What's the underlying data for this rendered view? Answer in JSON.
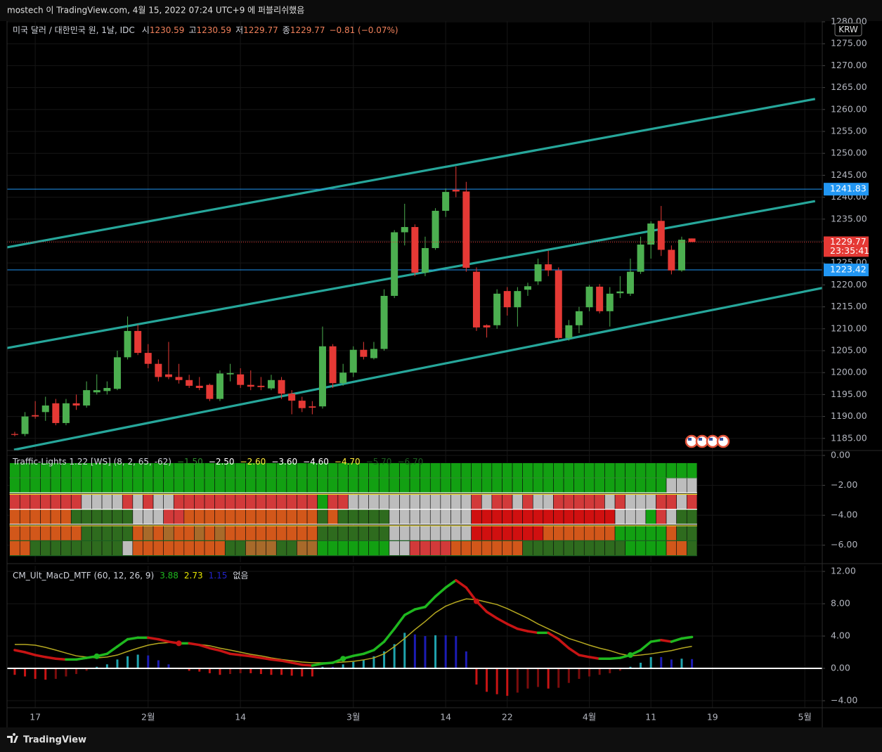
{
  "header": "mostech 이 TradingView.com, 4월 15, 2022 07:24 UTC+9 에 퍼블리쉬했음",
  "footer": "TradingView",
  "chart_data": [
    {
      "type": "candlestick",
      "title": "미국 달러 / 대한민국 원, 1날, IDC",
      "ohlc_labels": [
        "시",
        "고",
        "저",
        "종"
      ],
      "change": "−0.81 (−0.07%)",
      "currency": "KRW",
      "countdown": "23:35:41",
      "up_color": "#4caf50",
      "down_color": "#e53935",
      "open": [
        1186,
        1186,
        1190.3,
        1191,
        1193,
        1188.5,
        1193,
        1192.5,
        1195.5,
        1195.8,
        1196.3,
        1203.5,
        1209.5,
        1204.5,
        1202,
        1199.6,
        1199,
        1198.3,
        1197,
        1197.2,
        1194,
        1199.6,
        1199.6,
        1197.2,
        1197,
        1196.4,
        1198.3,
        1195.2,
        1193.6,
        1192.3,
        1192.3,
        1206,
        1197.6,
        1200,
        1205.2,
        1203.3,
        1205.4,
        1217.5,
        1232,
        1233.2,
        1222.8,
        1228.4,
        1236.9,
        1241.7,
        1241.3,
        1223,
        1210.8,
        1210.8,
        1218.6,
        1214.9,
        1218.9,
        1220.8,
        1224.7,
        1223.3,
        1207.9,
        1210.8,
        1214.9,
        1219.6,
        1214,
        1218.1,
        1218,
        1223,
        1229.2,
        1234.6,
        1228,
        1223.3,
        1230.59
      ],
      "high": [
        1186.5,
        1191,
        1193.5,
        1194.5,
        1194,
        1194,
        1195,
        1198,
        1199.6,
        1198,
        1205,
        1212.8,
        1211,
        1206.5,
        1203,
        1207,
        1202,
        1199.5,
        1199,
        1197.5,
        1200.5,
        1202,
        1201,
        1200.5,
        1199,
        1199.5,
        1199,
        1196,
        1194.5,
        1193.5,
        1210.5,
        1206.5,
        1202,
        1206,
        1207,
        1207,
        1219,
        1232.5,
        1238.5,
        1233.8,
        1231,
        1237.5,
        1242,
        1247,
        1243.5,
        1224,
        1211,
        1219,
        1219.5,
        1219.5,
        1220.5,
        1226,
        1227.8,
        1224,
        1212,
        1215,
        1220,
        1220.2,
        1219.5,
        1222,
        1226,
        1231,
        1234.5,
        1238,
        1229,
        1231,
        1230.59
      ],
      "low": [
        1185.5,
        1185.5,
        1189.5,
        1189,
        1188,
        1188,
        1191.5,
        1192,
        1195,
        1195,
        1196,
        1203,
        1204,
        1201,
        1198,
        1198.5,
        1197.5,
        1196.5,
        1196,
        1193.5,
        1193.5,
        1198,
        1196.5,
        1196,
        1196,
        1196,
        1194,
        1190.5,
        1191,
        1190.5,
        1191.8,
        1196.5,
        1197,
        1199,
        1203,
        1203,
        1205,
        1217,
        1229,
        1222,
        1222,
        1228,
        1235.5,
        1240,
        1223,
        1209.5,
        1208,
        1210,
        1213,
        1210.5,
        1217.5,
        1220,
        1222,
        1207.5,
        1207.3,
        1209,
        1214,
        1213.5,
        1210.5,
        1217,
        1217.5,
        1222.5,
        1226,
        1226.6,
        1222.4,
        1223,
        1229.77
      ],
      "close": [
        1185.8,
        1190,
        1190,
        1192.5,
        1188.5,
        1193,
        1192.5,
        1196,
        1196,
        1196.5,
        1203.5,
        1209.5,
        1204.5,
        1202,
        1199,
        1199,
        1198.3,
        1197,
        1196.5,
        1194,
        1199.8,
        1199.9,
        1197.2,
        1196.8,
        1196.7,
        1198.3,
        1195.2,
        1193.6,
        1191.9,
        1192,
        1206,
        1197.6,
        1200,
        1205.2,
        1203.6,
        1205.4,
        1217.5,
        1232,
        1233.2,
        1222.8,
        1228.4,
        1236.9,
        1241.2,
        1241.3,
        1223.9,
        1210.3,
        1210.3,
        1218,
        1214.9,
        1218.6,
        1219.7,
        1224.7,
        1223.3,
        1207.9,
        1210.8,
        1214,
        1219.6,
        1214,
        1218,
        1218.5,
        1223,
        1229.2,
        1234,
        1228,
        1223.3,
        1230.3,
        1229.77
      ],
      "trendline_color": "#26a69a",
      "trendlines": [
        {
          "x": [
            -0.75,
            78.0
          ],
          "y": [
            1228.56,
            1262.4
          ]
        },
        {
          "x": [
            -0.75,
            78.0
          ],
          "y": [
            1205.6,
            1239.1
          ]
        },
        {
          "x": [
            -0.07,
            78.7
          ],
          "y": [
            1182.4,
            1219.3
          ]
        }
      ],
      "hlines": [
        {
          "value": 1241.83,
          "color": "#2196f3"
        },
        {
          "value": 1223.42,
          "color": "#2196f3"
        }
      ],
      "xlim": [
        -0.75,
        78.7
      ],
      "xticks": [
        {
          "value": 2,
          "label": "17"
        },
        {
          "value": 13,
          "label": "2월"
        },
        {
          "value": 22,
          "label": "14"
        },
        {
          "value": 33,
          "label": "3월"
        },
        {
          "value": 42,
          "label": "14"
        },
        {
          "value": 48,
          "label": "22"
        },
        {
          "value": 56,
          "label": "4월"
        },
        {
          "value": 62,
          "label": "11"
        },
        {
          "value": 68,
          "label": "19"
        },
        {
          "value": 77,
          "label": "5월"
        }
      ],
      "ylim": [
        1182.4,
        1280.16
      ],
      "yticks": [
        {
          "value": 1280,
          "label": "1280.00"
        },
        {
          "value": 1275,
          "label": "1275.00"
        },
        {
          "value": 1270,
          "label": "1270.00"
        },
        {
          "value": 1265,
          "label": "1265.00"
        },
        {
          "value": 1260,
          "label": "1260.00"
        },
        {
          "value": 1255,
          "label": "1255.00"
        },
        {
          "value": 1250,
          "label": "1250.00"
        },
        {
          "value": 1245,
          "label": "1245.00"
        },
        {
          "value": 1240,
          "label": "1240.00"
        },
        {
          "value": 1235,
          "label": "1235.00"
        },
        {
          "value": 1230,
          "label": "1230.00"
        },
        {
          "value": 1225,
          "label": "1225.00"
        },
        {
          "value": 1220,
          "label": "1220.00"
        },
        {
          "value": 1215,
          "label": "1215.00"
        },
        {
          "value": 1210,
          "label": "1210.00"
        },
        {
          "value": 1205,
          "label": "1205.00"
        },
        {
          "value": 1200,
          "label": "1200.00"
        },
        {
          "value": 1195,
          "label": "1195.00"
        },
        {
          "value": 1190,
          "label": "1190.00"
        },
        {
          "value": 1185,
          "label": "1185.00"
        }
      ],
      "grid": true
    },
    {
      "type": "heatmap",
      "title": "Traffic-Lights 1.22 [WS] (8, 2, 65, -62)",
      "levels": [
        {
          "value": -1.5,
          "label": "−1.50",
          "color": "#2e8b2e"
        },
        {
          "value": -2.5,
          "label": "−2.50",
          "color": "#ffffff"
        },
        {
          "value": -2.6,
          "label": "−2.60",
          "color": "#ffeb3b"
        },
        {
          "value": -3.6,
          "label": "−3.60",
          "color": "#ffffff"
        },
        {
          "value": -4.6,
          "label": "−4.60",
          "color": "#ffffff"
        },
        {
          "value": -4.7,
          "label": "−4.70",
          "color": "#ffeb3b"
        },
        {
          "value": -5.7,
          "label": "−5.70",
          "color": "#1b5e20"
        },
        {
          "value": -6.7,
          "label": "−6.70",
          "color": "#1b5e20"
        }
      ],
      "palette": {
        "G": "#12a012",
        "g": "#2e6b1e",
        "R": "#d23a3a",
        "W": "#bdbdbd",
        "O": "#d2571a",
        "o": "#a86a2a",
        "D": "#d01010"
      },
      "rows": [
        {
          "top": -0.5,
          "bottom": -1.5,
          "colors": "GGGGGGGGGGGGGGGGGGGGGGGGGGGGGGGGGGGGGGGGGGGGGGGGGGGGGGGGGGGGGGGGGGG"
        },
        {
          "top": -1.5,
          "bottom": -2.5,
          "colors": "GGGGGGGGGGGGGGGGGGGGGGGGGGGGGGGGGGGGGGGGGGGGGGGGGGGGGGGGGGGGGGGGWWW"
        },
        {
          "top": -2.6,
          "bottom": -3.6,
          "colors": "RRRRRRRWWWWRWRWWRRRRRRRRRRRRRRGRRWWWWWWWWWWWWRWRRWRWWRRRRRWRWWWRRWR"
        },
        {
          "top": -3.6,
          "bottom": -4.6,
          "colors": "OOOOOOggggggWWWRROOOOOOOOOOOOOgOgggggWWWWWWWWDDDDDDDDDDDDDDWWWGRWgg"
        },
        {
          "top": -4.7,
          "bottom": -5.7,
          "colors": "OOOOOOOgggggOoOoOOoOoOOOOOOOOOgggggggWWWWWWWWDDDDDDDOOOOOOOGGGGGOgg"
        },
        {
          "top": -5.7,
          "bottom": -6.7,
          "colors": "OOgggggggggWOOOOOOOOOggoooggooGGGGGGGWWRRRROOOOOOOggggggggggGGGGOOg"
        }
      ],
      "ylim": [
        -7.14,
        0.33
      ],
      "yticks": [
        {
          "value": 0,
          "label": "0.00"
        },
        {
          "value": -2,
          "label": "−2.00"
        },
        {
          "value": -4,
          "label": "−4.00"
        },
        {
          "value": -6,
          "label": "−6.00"
        }
      ]
    },
    {
      "type": "line",
      "title": "CM_Ult_MacD_MTF (60, 12, 26, 9)",
      "na_label": "없음",
      "series": [
        {
          "rising_color": "#1fb81f",
          "falling_color": "#c81414",
          "values": [
            2.26,
            2.0,
            1.65,
            1.4,
            1.2,
            1.1,
            1.1,
            1.3,
            1.5,
            1.8,
            2.7,
            3.6,
            3.8,
            3.8,
            3.6,
            3.3,
            3.1,
            3.1,
            2.9,
            2.5,
            2.2,
            1.8,
            1.65,
            1.5,
            1.3,
            1.1,
            0.95,
            0.7,
            0.45,
            0.35,
            0.6,
            0.7,
            1.2,
            1.55,
            1.8,
            2.26,
            3.3,
            4.9,
            6.6,
            7.3,
            7.6,
            8.9,
            10.0,
            10.9,
            10.0,
            8.3,
            7.0,
            6.2,
            5.5,
            4.9,
            4.6,
            4.4,
            4.4,
            3.6,
            2.5,
            1.65,
            1.4,
            1.2,
            1.2,
            1.3,
            1.65,
            2.26,
            3.3,
            3.5,
            3.3,
            3.7,
            3.88
          ]
        },
        {
          "color": "#b5a820",
          "values": [
            2.96,
            2.96,
            2.87,
            2.6,
            2.26,
            1.9,
            1.55,
            1.4,
            1.3,
            1.4,
            1.65,
            2.1,
            2.5,
            2.87,
            3.1,
            3.2,
            3.2,
            3.1,
            2.96,
            2.8,
            2.5,
            2.26,
            2.0,
            1.74,
            1.55,
            1.3,
            1.1,
            0.95,
            0.78,
            0.7,
            0.7,
            0.7,
            0.78,
            0.87,
            1.05,
            1.3,
            1.8,
            2.7,
            3.7,
            4.8,
            5.8,
            6.9,
            7.7,
            8.2,
            8.6,
            8.5,
            8.2,
            7.9,
            7.4,
            6.8,
            6.2,
            5.5,
            4.9,
            4.3,
            3.7,
            3.3,
            2.87,
            2.5,
            2.2,
            1.8,
            1.55,
            1.65,
            1.8,
            2.0,
            2.2,
            2.5,
            2.73
          ]
        }
      ],
      "histogram": {
        "colors": {
          "up_rising": "#1fa3ad",
          "up_falling": "#1c1cb4",
          "down_falling": "#c81414",
          "down_rising": "#7a0c0c"
        },
        "values": [
          -0.8,
          -1.0,
          -1.3,
          -1.4,
          -1.3,
          -1.0,
          -0.7,
          -0.3,
          0.2,
          0.5,
          1.1,
          1.5,
          1.7,
          1.6,
          1.0,
          0.5,
          -0.1,
          -0.3,
          -0.4,
          -0.6,
          -0.8,
          -0.7,
          -0.6,
          -0.6,
          -0.7,
          -0.8,
          -0.8,
          -0.9,
          -1.0,
          -1.0,
          0.2,
          0.2,
          0.5,
          0.8,
          1.0,
          1.5,
          2.1,
          3.0,
          4.4,
          4.2,
          4.0,
          4.1,
          4.1,
          4.0,
          2.1,
          -2.0,
          -2.9,
          -3.2,
          -3.4,
          -3.0,
          -2.5,
          -2.3,
          -2.5,
          -2.4,
          -1.8,
          -1.3,
          -1.0,
          -0.8,
          -0.6,
          -0.3,
          0.2,
          0.7,
          1.4,
          1.4,
          1.1,
          1.2,
          1.15
        ]
      },
      "ylim": [
        -4.87,
        12.7
      ],
      "yticks": [
        {
          "value": 12,
          "label": "12.00"
        },
        {
          "value": 8,
          "label": "8.00"
        },
        {
          "value": 4,
          "label": "4.00"
        },
        {
          "value": 0,
          "label": "0.00"
        },
        {
          "value": -4,
          "label": "−4.00"
        }
      ]
    }
  ]
}
